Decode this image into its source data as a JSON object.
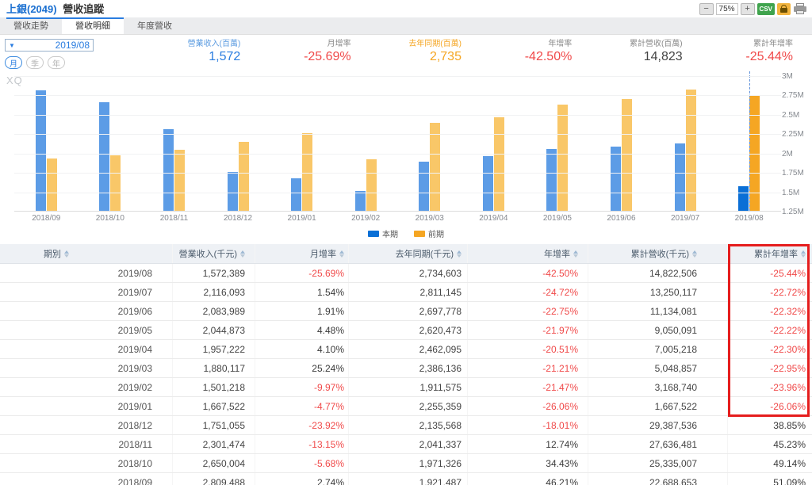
{
  "header": {
    "title_stock": "上銀(2049)",
    "title_page": "營收追蹤",
    "zoom_out": "−",
    "zoom_level": "75%",
    "zoom_in": "+",
    "csv_label": "CSV"
  },
  "tabs": [
    {
      "label": "營收走勢",
      "active": false
    },
    {
      "label": "營收明細",
      "active": true
    },
    {
      "label": "年度營收",
      "active": false
    }
  ],
  "controls": {
    "dropdown_arrow": "▼",
    "period_value": "2019/08",
    "period_buttons": [
      {
        "label": "月",
        "active": true
      },
      {
        "label": "季",
        "active": false
      },
      {
        "label": "年",
        "active": false
      }
    ]
  },
  "summary": [
    {
      "label": "營業收入(百萬)",
      "value": "1,572",
      "label_color": "#5b9be0",
      "value_color": "#2a7de0"
    },
    {
      "label": "月增率",
      "value": "-25.69%",
      "label_color": "#8a8a8a",
      "value_color": "#f04a4a"
    },
    {
      "label": "去年同期(百萬)",
      "value": "2,735",
      "label_color": "#f5a623",
      "value_color": "#f5a623"
    },
    {
      "label": "年增率",
      "value": "-42.50%",
      "label_color": "#8a8a8a",
      "value_color": "#f04a4a"
    },
    {
      "label": "累計營收(百萬)",
      "value": "14,823",
      "label_color": "#8a8a8a",
      "value_color": "#444444"
    },
    {
      "label": "累計年增率",
      "value": "-25.44%",
      "label_color": "#8a8a8a",
      "value_color": "#f04a4a"
    }
  ],
  "chart_data": {
    "type": "bar",
    "watermark": "XQ",
    "unit": "千元",
    "categories": [
      "2018/09",
      "2018/10",
      "2018/11",
      "2018/12",
      "2019/01",
      "2019/02",
      "2019/03",
      "2019/04",
      "2019/05",
      "2019/06",
      "2019/07",
      "2019/08"
    ],
    "series": [
      {
        "name": "本期",
        "color": "#5c9ce6",
        "highlight_color": "#0a6fd6",
        "values": [
          2809488,
          2650004,
          2301474,
          1751055,
          1667522,
          1501218,
          1880117,
          1957222,
          2044873,
          2083989,
          2116093,
          1572389
        ]
      },
      {
        "name": "前期",
        "color": "#f9c768",
        "highlight_color": "#f5a623",
        "values": [
          1921487,
          1971326,
          2041337,
          2135568,
          2255359,
          1911575,
          2386136,
          2462095,
          2620473,
          2697778,
          2811145,
          2734603
        ]
      }
    ],
    "ylim": [
      1250000,
      3000000
    ],
    "y_ticks": [
      "3M",
      "2.75M",
      "2.5M",
      "2.25M",
      "2M",
      "1.75M",
      "1.5M",
      "1.25M"
    ],
    "highlight_index": 11,
    "legend_position": "bottom-center",
    "grid": true
  },
  "table": {
    "columns": [
      "期別",
      "營業收入(千元)",
      "月增率",
      "去年同期(千元)",
      "年增率",
      "累計營收(千元)",
      "累計年增率"
    ],
    "rows": [
      [
        "2019/08",
        "1,572,389",
        "-25.69%",
        "2,734,603",
        "-42.50%",
        "14,822,506",
        "-25.44%"
      ],
      [
        "2019/07",
        "2,116,093",
        "1.54%",
        "2,811,145",
        "-24.72%",
        "13,250,117",
        "-22.72%"
      ],
      [
        "2019/06",
        "2,083,989",
        "1.91%",
        "2,697,778",
        "-22.75%",
        "11,134,081",
        "-22.32%"
      ],
      [
        "2019/05",
        "2,044,873",
        "4.48%",
        "2,620,473",
        "-21.97%",
        "9,050,091",
        "-22.22%"
      ],
      [
        "2019/04",
        "1,957,222",
        "4.10%",
        "2,462,095",
        "-20.51%",
        "7,005,218",
        "-22.30%"
      ],
      [
        "2019/03",
        "1,880,117",
        "25.24%",
        "2,386,136",
        "-21.21%",
        "5,048,857",
        "-22.95%"
      ],
      [
        "2019/02",
        "1,501,218",
        "-9.97%",
        "1,911,575",
        "-21.47%",
        "3,168,740",
        "-23.96%"
      ],
      [
        "2019/01",
        "1,667,522",
        "-4.77%",
        "2,255,359",
        "-26.06%",
        "1,667,522",
        "-26.06%"
      ],
      [
        "2018/12",
        "1,751,055",
        "-23.92%",
        "2,135,568",
        "-18.01%",
        "29,387,536",
        "38.85%"
      ],
      [
        "2018/11",
        "2,301,474",
        "-13.15%",
        "2,041,337",
        "12.74%",
        "27,636,481",
        "45.23%"
      ],
      [
        "2018/10",
        "2,650,004",
        "-5.68%",
        "1,971,326",
        "34.43%",
        "25,335,007",
        "49.14%"
      ],
      [
        "2018/09",
        "2,809,488",
        "2.74%",
        "1,921,487",
        "46.21%",
        "22,688,653",
        "51.09%"
      ]
    ],
    "highlight_rows": 8,
    "highlight_color": "#e51d1d",
    "negative_color": "#f04a4a",
    "positive_color": "#3a3a3a"
  }
}
